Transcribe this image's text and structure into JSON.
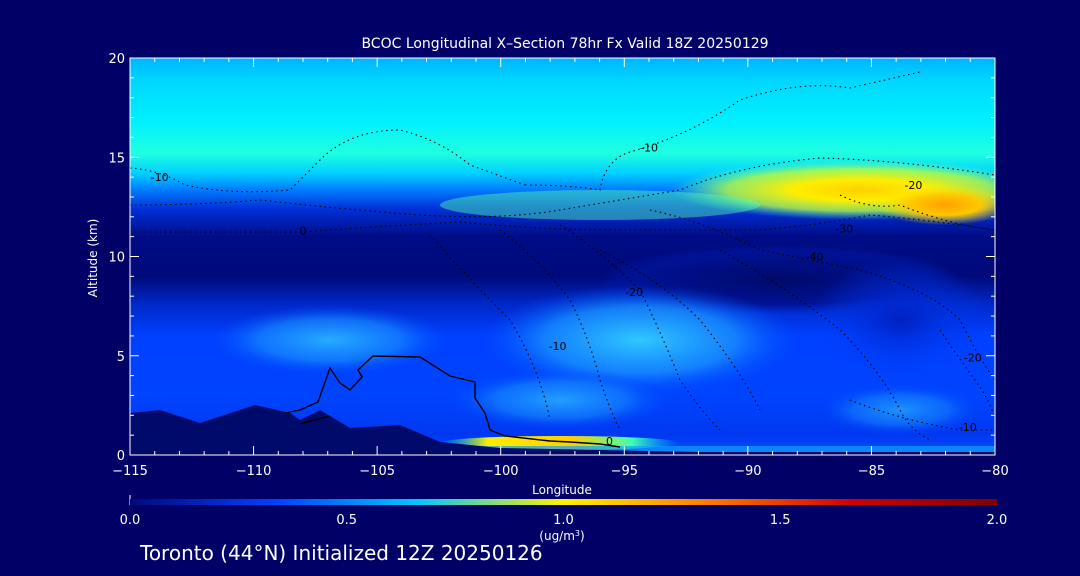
{
  "chart_data": {
    "type": "heatmap",
    "title": "BCOC Longitudinal X–Section 78hr  Fx Valid 18Z 20250129",
    "xlabel": "Longitude",
    "ylabel": "Altitude (km)",
    "xlim": [
      -115,
      -80
    ],
    "ylim": [
      0,
      20
    ],
    "x_ticks": [
      -115,
      -110,
      -105,
      -100,
      -95,
      -90,
      -85,
      -80
    ],
    "y_ticks": [
      0,
      5,
      10,
      15,
      20
    ],
    "colorbar": {
      "range": [
        0.0,
        2.0
      ],
      "ticks": [
        "0.0",
        "0.5",
        "1.0",
        "1.5",
        "2.0"
      ],
      "unit": "(ug/m",
      "unit_sup": "3",
      "unit_end": ")",
      "colors": [
        "#000a7a",
        "#0040ff",
        "#00c8ff",
        "#fff200",
        "#ff7a00",
        "#d00000",
        "#800000"
      ]
    },
    "contour_labels": [
      {
        "text": "-10",
        "lon": -113.8,
        "alt": 13.8
      },
      {
        "text": "0",
        "lon": -108,
        "alt": 11.1
      },
      {
        "text": "-10",
        "lon": -94,
        "alt": 15.3
      },
      {
        "text": "-20",
        "lon": -83.3,
        "alt": 13.4
      },
      {
        "text": "-30",
        "lon": -86.1,
        "alt": 11.2
      },
      {
        "text": "-40",
        "lon": -87.3,
        "alt": 9.8
      },
      {
        "text": "-20",
        "lon": -94.6,
        "alt": 8.0
      },
      {
        "text": "-10",
        "lon": -97.7,
        "alt": 5.3
      },
      {
        "text": "0",
        "lon": -95.6,
        "alt": 0.5
      },
      {
        "text": "-20",
        "lon": -80.9,
        "alt": 4.7
      },
      {
        "text": "-10",
        "lon": -81.1,
        "alt": 1.2
      }
    ]
  },
  "footer": "Toronto (44°N) Initialized 12Z 20250126"
}
